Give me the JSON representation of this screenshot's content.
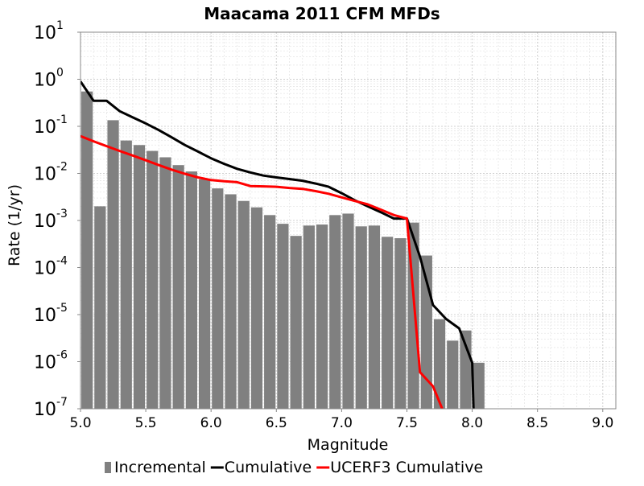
{
  "chart_data": {
    "type": "bar",
    "title": "Maacama 2011 CFM MFDs",
    "xlabel": "Magnitude",
    "ylabel": "Rate (1/yr)",
    "xlim": [
      5.0,
      9.1
    ],
    "ylim": [
      1e-07,
      10
    ],
    "y_scale": "log",
    "grid": true,
    "legend_position": "bottom",
    "x_ticks": [
      "5.0",
      "5.5",
      "6.0",
      "6.5",
      "7.0",
      "7.5",
      "8.0",
      "8.5",
      "9.0"
    ],
    "y_ticks": [
      {
        "base": "10",
        "exp": "1"
      },
      {
        "base": "10",
        "exp": "0"
      },
      {
        "base": "10",
        "exp": "-1"
      },
      {
        "base": "10",
        "exp": "-2"
      },
      {
        "base": "10",
        "exp": "-3"
      },
      {
        "base": "10",
        "exp": "-4"
      },
      {
        "base": "10",
        "exp": "-5"
      },
      {
        "base": "10",
        "exp": "-6"
      },
      {
        "base": "10",
        "exp": "-7"
      }
    ],
    "incremental": {
      "name": "Incremental",
      "color": "#808080",
      "bin_width": 0.1,
      "x": [
        5.0,
        5.1,
        5.2,
        5.3,
        5.4,
        5.5,
        5.6,
        5.7,
        5.8,
        5.9,
        6.0,
        6.1,
        6.2,
        6.3,
        6.4,
        6.5,
        6.6,
        6.7,
        6.8,
        6.9,
        7.0,
        7.1,
        7.2,
        7.3,
        7.4,
        7.5,
        7.6,
        7.7,
        7.8,
        7.9,
        8.0
      ],
      "values": [
        0.55,
        0.002,
        0.135,
        0.05,
        0.04,
        0.03,
        0.022,
        0.015,
        0.011,
        0.0075,
        0.0048,
        0.0036,
        0.0026,
        0.0019,
        0.0013,
        0.00085,
        0.00047,
        0.00078,
        0.00082,
        0.0013,
        0.0014,
        0.00075,
        0.00078,
        0.00045,
        0.00042,
        0.0009,
        0.00018,
        8e-06,
        2.8e-06,
        4.6e-06,
        9.5e-07
      ]
    },
    "series": [
      {
        "name": "Cumulative",
        "color": "#000000",
        "x": [
          5.0,
          5.1,
          5.2,
          5.3,
          5.4,
          5.5,
          5.6,
          5.7,
          5.8,
          5.9,
          6.0,
          6.1,
          6.2,
          6.3,
          6.4,
          6.5,
          6.6,
          6.7,
          6.8,
          6.9,
          7.0,
          7.1,
          7.2,
          7.3,
          7.4,
          7.5,
          7.6,
          7.7,
          7.8,
          7.9,
          8.0,
          8.01
        ],
        "values": [
          0.9,
          0.35,
          0.35,
          0.21,
          0.155,
          0.115,
          0.083,
          0.058,
          0.04,
          0.029,
          0.021,
          0.016,
          0.0125,
          0.0105,
          0.009,
          0.0082,
          0.0076,
          0.007,
          0.0061,
          0.0052,
          0.0038,
          0.0027,
          0.002,
          0.0015,
          0.0011,
          0.0011,
          0.00017,
          1.6e-05,
          8.1e-06,
          5.1e-06,
          9.5e-07,
          1e-07
        ]
      },
      {
        "name": "UCERF3 Cumulative",
        "color": "#ff0000",
        "x": [
          5.0,
          5.1,
          5.2,
          5.3,
          5.4,
          5.5,
          5.6,
          5.7,
          5.8,
          5.9,
          6.0,
          6.1,
          6.2,
          6.3,
          6.4,
          6.5,
          6.6,
          6.7,
          6.8,
          6.9,
          7.0,
          7.1,
          7.2,
          7.3,
          7.4,
          7.5,
          7.6,
          7.7,
          7.77
        ],
        "values": [
          0.062,
          0.048,
          0.038,
          0.03,
          0.024,
          0.019,
          0.015,
          0.012,
          0.0098,
          0.0082,
          0.0072,
          0.0068,
          0.0065,
          0.0054,
          0.0053,
          0.0052,
          0.0049,
          0.0047,
          0.0042,
          0.0037,
          0.0031,
          0.0026,
          0.0022,
          0.0017,
          0.0013,
          0.0011,
          6e-07,
          3e-07,
          1e-07
        ]
      }
    ]
  }
}
